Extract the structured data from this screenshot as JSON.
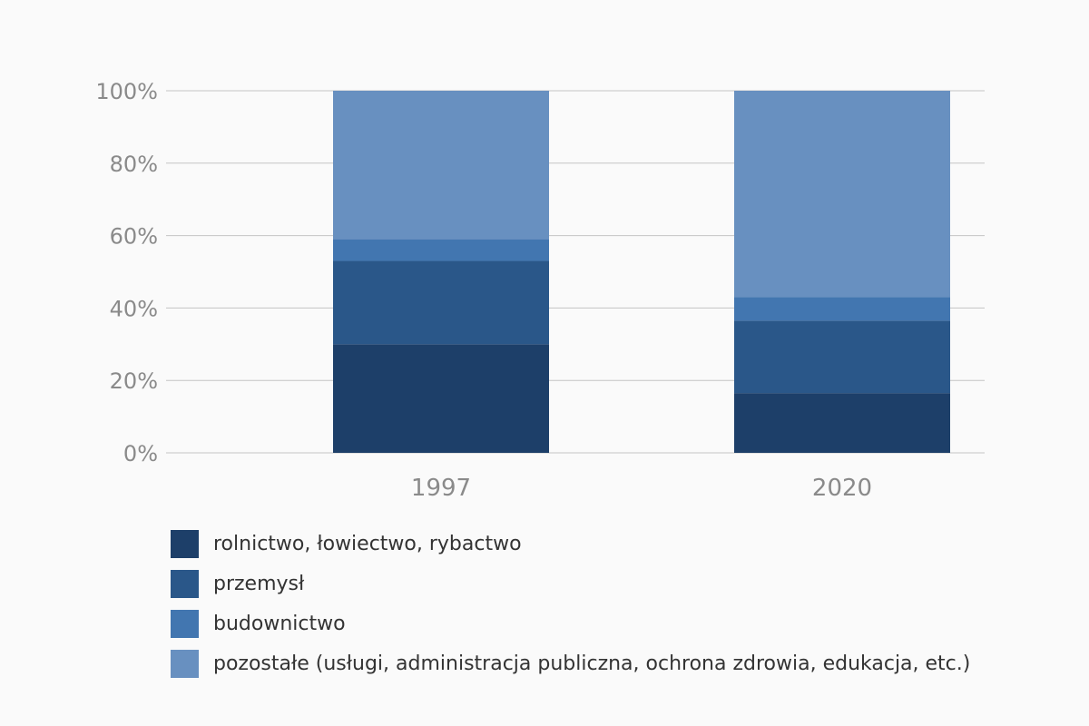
{
  "chart_data": {
    "type": "bar",
    "stacked": true,
    "categories": [
      "1997",
      "2020"
    ],
    "series": [
      {
        "name": "rolnictwo, łowiectwo, rybactwo",
        "values": [
          30,
          16.5
        ],
        "color": "#1d3f69"
      },
      {
        "name": "przemysł",
        "values": [
          23,
          20
        ],
        "color": "#2a5789"
      },
      {
        "name": "budownictwo",
        "values": [
          6,
          6.5
        ],
        "color": "#4276b0"
      },
      {
        "name": "pozostałe (usługi, administracja publiczna, ochrona zdrowia, edukacja, etc.)",
        "values": [
          41,
          57
        ],
        "color": "#6890c0"
      }
    ],
    "ylim": [
      0,
      100
    ],
    "yticks": [
      "0%",
      "20%",
      "40%",
      "60%",
      "80%",
      "100%"
    ],
    "grid": true,
    "legend_position": "bottom-left"
  }
}
